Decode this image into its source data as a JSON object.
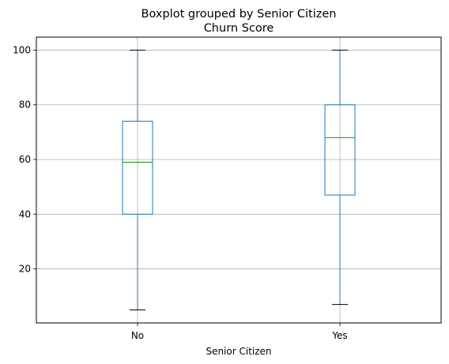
{
  "chart_data": {
    "type": "box",
    "title": "Boxplot grouped by Senior Citizen",
    "subtitle": "Churn Score",
    "xlabel": "Senior Citizen",
    "ylabel": "",
    "categories": [
      "No",
      "Yes"
    ],
    "boxes": [
      {
        "category": "No",
        "whisker_low": 5,
        "q1": 40,
        "median": 59,
        "q3": 74,
        "whisker_high": 100
      },
      {
        "category": "Yes",
        "whisker_low": 7,
        "q1": 47,
        "median": 68,
        "q3": 80,
        "whisker_high": 100
      }
    ],
    "ylim": [
      0.25,
      104.75
    ],
    "yticks": [
      20,
      40,
      60,
      80,
      100
    ],
    "grid": true,
    "colors": {
      "box": "#1f77b4",
      "median": "#2ca02c",
      "whisker_cap": "#000000",
      "grid": "#b0b0b0"
    }
  }
}
